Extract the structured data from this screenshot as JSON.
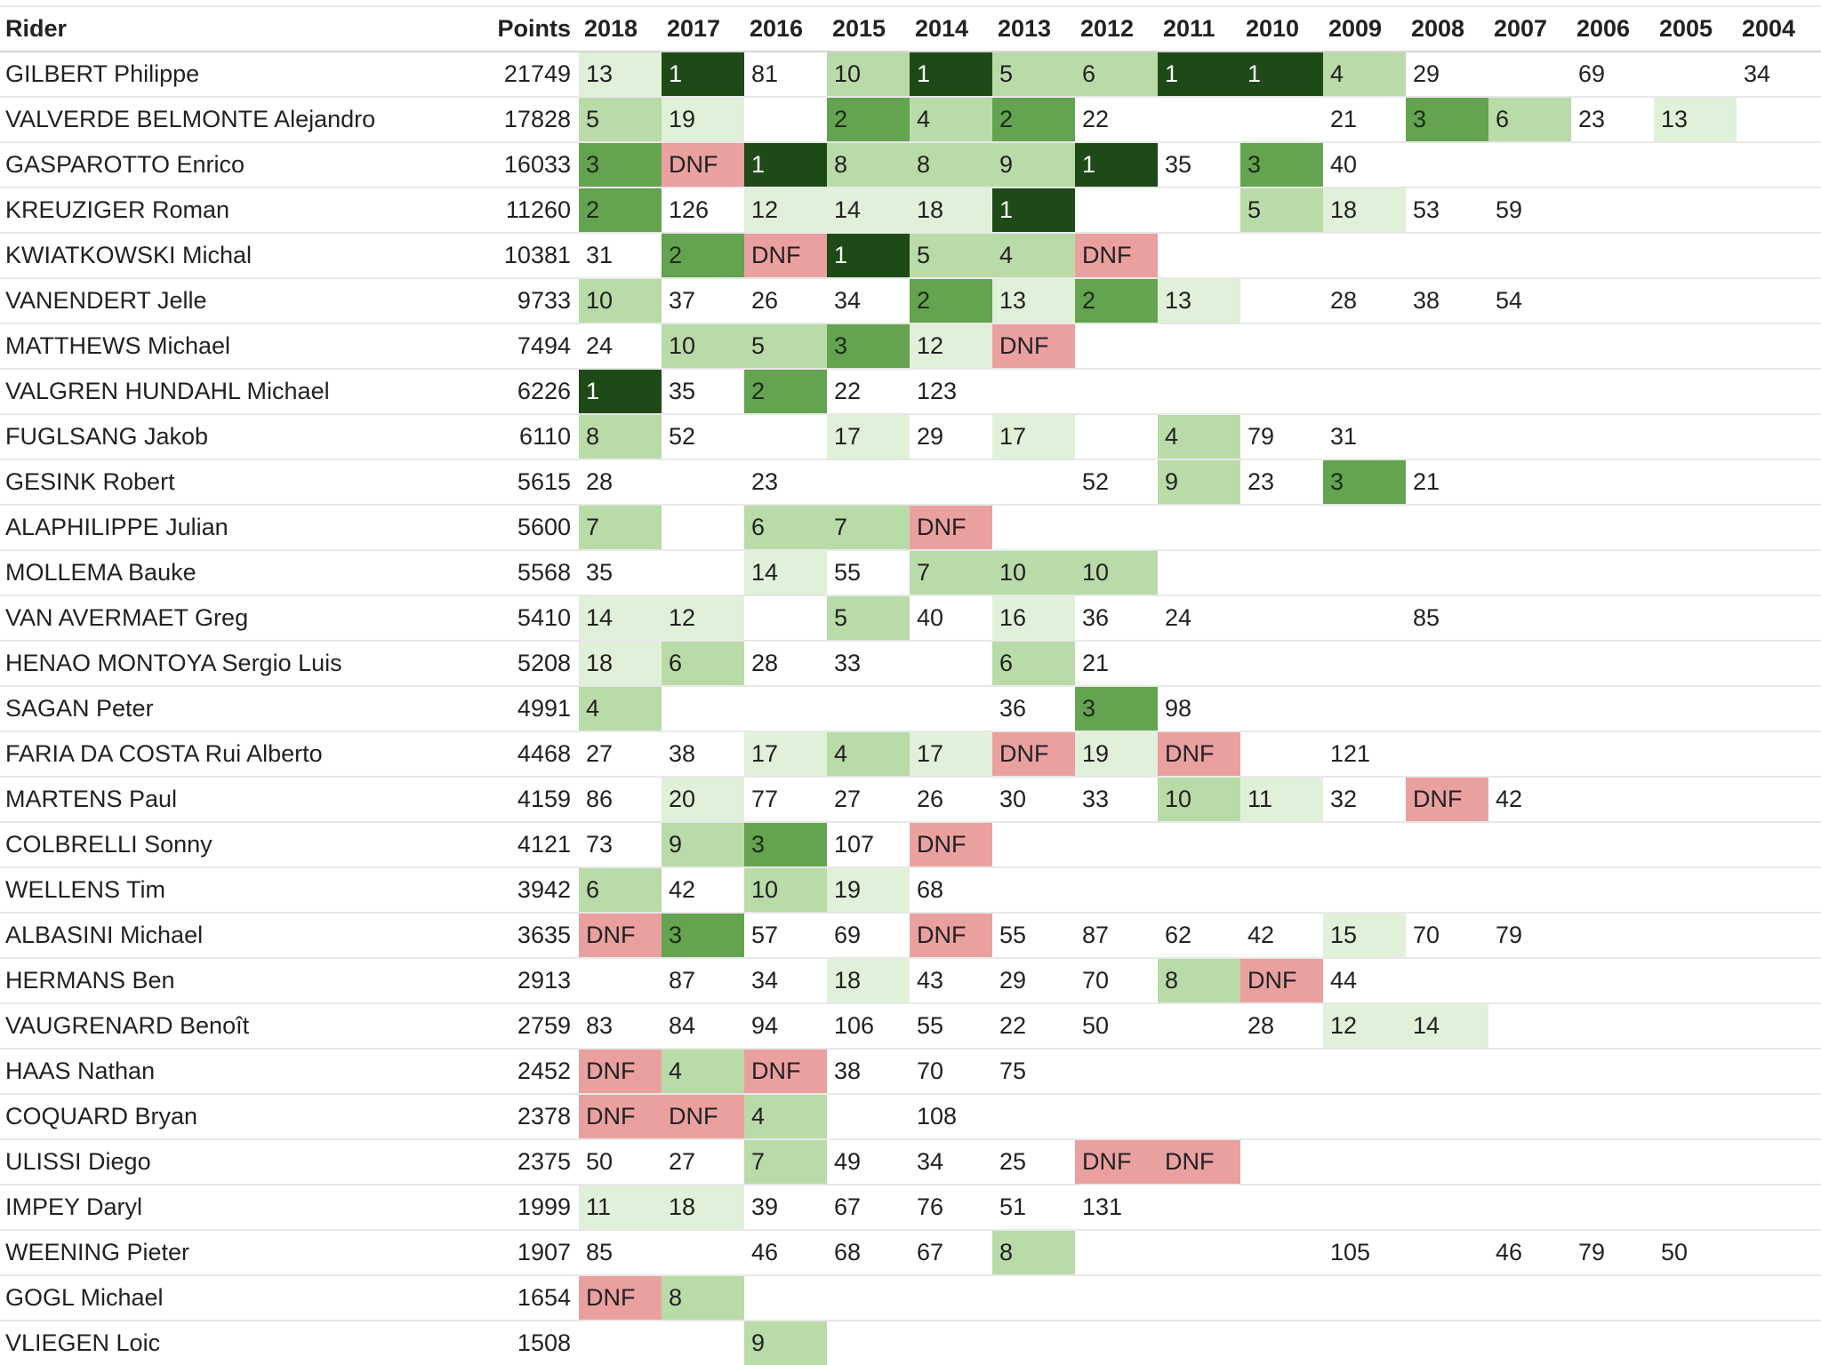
{
  "table": {
    "columns": [
      "Rider",
      "Points",
      "2018",
      "2017",
      "2016",
      "2015",
      "2014",
      "2013",
      "2012",
      "2011",
      "2010",
      "2009",
      "2008",
      "2007",
      "2006",
      "2005",
      "2004"
    ],
    "rows": [
      {
        "rider": "GILBERT Philippe",
        "points": "21749",
        "results": [
          "13",
          "1",
          "81",
          "10",
          "1",
          "5",
          "6",
          "1",
          "1",
          "4",
          "29",
          "",
          "69",
          "",
          "34"
        ]
      },
      {
        "rider": "VALVERDE BELMONTE Alejandro",
        "points": "17828",
        "results": [
          "5",
          "19",
          "",
          "2",
          "4",
          "2",
          "22",
          "",
          "",
          "21",
          "3",
          "6",
          "23",
          "13",
          ""
        ]
      },
      {
        "rider": "GASPAROTTO Enrico",
        "points": "16033",
        "results": [
          "3",
          "DNF",
          "1",
          "8",
          "8",
          "9",
          "1",
          "35",
          "3",
          "40",
          "",
          "",
          "",
          "",
          ""
        ]
      },
      {
        "rider": "KREUZIGER Roman",
        "points": "11260",
        "results": [
          "2",
          "126",
          "12",
          "14",
          "18",
          "1",
          "",
          "",
          "5",
          "18",
          "53",
          "59",
          "",
          "",
          ""
        ]
      },
      {
        "rider": "KWIATKOWSKI Michal",
        "points": "10381",
        "results": [
          "31",
          "2",
          "DNF",
          "1",
          "5",
          "4",
          "DNF",
          "",
          "",
          "",
          "",
          "",
          "",
          "",
          ""
        ]
      },
      {
        "rider": "VANENDERT Jelle",
        "points": "9733",
        "results": [
          "10",
          "37",
          "26",
          "34",
          "2",
          "13",
          "2",
          "13",
          "",
          "28",
          "38",
          "54",
          "",
          "",
          ""
        ]
      },
      {
        "rider": "MATTHEWS Michael",
        "points": "7494",
        "results": [
          "24",
          "10",
          "5",
          "3",
          "12",
          "DNF",
          "",
          "",
          "",
          "",
          "",
          "",
          "",
          "",
          ""
        ]
      },
      {
        "rider": "VALGREN HUNDAHL Michael",
        "points": "6226",
        "results": [
          "1",
          "35",
          "2",
          "22",
          "123",
          "",
          "",
          "",
          "",
          "",
          "",
          "",
          "",
          "",
          ""
        ]
      },
      {
        "rider": "FUGLSANG Jakob",
        "points": "6110",
        "results": [
          "8",
          "52",
          "",
          "17",
          "29",
          "17",
          "",
          "4",
          "79",
          "31",
          "",
          "",
          "",
          "",
          ""
        ]
      },
      {
        "rider": "GESINK Robert",
        "points": "5615",
        "results": [
          "28",
          "",
          "23",
          "",
          "",
          "",
          "52",
          "9",
          "23",
          "3",
          "21",
          "",
          "",
          "",
          ""
        ]
      },
      {
        "rider": "ALAPHILIPPE Julian",
        "points": "5600",
        "results": [
          "7",
          "",
          "6",
          "7",
          "DNF",
          "",
          "",
          "",
          "",
          "",
          "",
          "",
          "",
          "",
          ""
        ]
      },
      {
        "rider": "MOLLEMA Bauke",
        "points": "5568",
        "results": [
          "35",
          "",
          "14",
          "55",
          "7",
          "10",
          "10",
          "",
          "",
          "",
          "",
          "",
          "",
          "",
          ""
        ]
      },
      {
        "rider": "VAN AVERMAET Greg",
        "points": "5410",
        "results": [
          "14",
          "12",
          "",
          "5",
          "40",
          "16",
          "36",
          "24",
          "",
          "",
          "85",
          "",
          "",
          "",
          ""
        ]
      },
      {
        "rider": "HENAO MONTOYA Sergio Luis",
        "points": "5208",
        "results": [
          "18",
          "6",
          "28",
          "33",
          "",
          "6",
          "21",
          "",
          "",
          "",
          "",
          "",
          "",
          "",
          ""
        ]
      },
      {
        "rider": "SAGAN Peter",
        "points": "4991",
        "results": [
          "4",
          "",
          "",
          "",
          "",
          "36",
          "3",
          "98",
          "",
          "",
          "",
          "",
          "",
          "",
          ""
        ]
      },
      {
        "rider": "FARIA DA COSTA Rui Alberto",
        "points": "4468",
        "results": [
          "27",
          "38",
          "17",
          "4",
          "17",
          "DNF",
          "19",
          "DNF",
          "",
          "121",
          "",
          "",
          "",
          "",
          ""
        ]
      },
      {
        "rider": "MARTENS Paul",
        "points": "4159",
        "results": [
          "86",
          "20",
          "77",
          "27",
          "26",
          "30",
          "33",
          "10",
          "11",
          "32",
          "DNF",
          "42",
          "",
          "",
          ""
        ]
      },
      {
        "rider": "COLBRELLI Sonny",
        "points": "4121",
        "results": [
          "73",
          "9",
          "3",
          "107",
          "DNF",
          "",
          "",
          "",
          "",
          "",
          "",
          "",
          "",
          "",
          ""
        ]
      },
      {
        "rider": "WELLENS Tim",
        "points": "3942",
        "results": [
          "6",
          "42",
          "10",
          "19",
          "68",
          "",
          "",
          "",
          "",
          "",
          "",
          "",
          "",
          "",
          ""
        ]
      },
      {
        "rider": "ALBASINI Michael",
        "points": "3635",
        "results": [
          "DNF",
          "3",
          "57",
          "69",
          "DNF",
          "55",
          "87",
          "62",
          "42",
          "15",
          "70",
          "79",
          "",
          "",
          ""
        ]
      },
      {
        "rider": "HERMANS Ben",
        "points": "2913",
        "results": [
          "",
          "87",
          "34",
          "18",
          "43",
          "29",
          "70",
          "8",
          "DNF",
          "44",
          "",
          "",
          "",
          "",
          ""
        ]
      },
      {
        "rider": "VAUGRENARD Benoît",
        "points": "2759",
        "results": [
          "83",
          "84",
          "94",
          "106",
          "55",
          "22",
          "50",
          "",
          "28",
          "12",
          "14",
          "",
          "",
          "",
          ""
        ]
      },
      {
        "rider": "HAAS Nathan",
        "points": "2452",
        "results": [
          "DNF",
          "4",
          "DNF",
          "38",
          "70",
          "75",
          "",
          "",
          "",
          "",
          "",
          "",
          "",
          "",
          ""
        ]
      },
      {
        "rider": "COQUARD Bryan",
        "points": "2378",
        "results": [
          "DNF",
          "DNF",
          "4",
          "",
          "108",
          "",
          "",
          "",
          "",
          "",
          "",
          "",
          "",
          "",
          ""
        ]
      },
      {
        "rider": "ULISSI Diego",
        "points": "2375",
        "results": [
          "50",
          "27",
          "7",
          "49",
          "34",
          "25",
          "DNF",
          "DNF",
          "",
          "",
          "",
          "",
          "",
          "",
          ""
        ]
      },
      {
        "rider": "IMPEY Daryl",
        "points": "1999",
        "results": [
          "11",
          "18",
          "39",
          "67",
          "76",
          "51",
          "131",
          "",
          "",
          "",
          "",
          "",
          "",
          "",
          ""
        ]
      },
      {
        "rider": "WEENING Pieter",
        "points": "1907",
        "results": [
          "85",
          "",
          "46",
          "68",
          "67",
          "8",
          "",
          "",
          "",
          "105",
          "",
          "46",
          "79",
          "50",
          ""
        ]
      },
      {
        "rider": "GOGL Michael",
        "points": "1654",
        "results": [
          "DNF",
          "8",
          "",
          "",
          "",
          "",
          "",
          "",
          "",
          "",
          "",
          "",
          "",
          "",
          ""
        ]
      },
      {
        "rider": "VLIEGEN Loic",
        "points": "1508",
        "results": [
          "",
          "",
          "9",
          "",
          "",
          "",
          "",
          "",
          "",
          "",
          "",
          "",
          "",
          "",
          ""
        ]
      }
    ]
  },
  "colors": {
    "win": "#1e4a17",
    "podium": "#64a34f",
    "top10": "#b9dba8",
    "top20": "#e1f0d8",
    "dnf": "#eba0a0"
  }
}
